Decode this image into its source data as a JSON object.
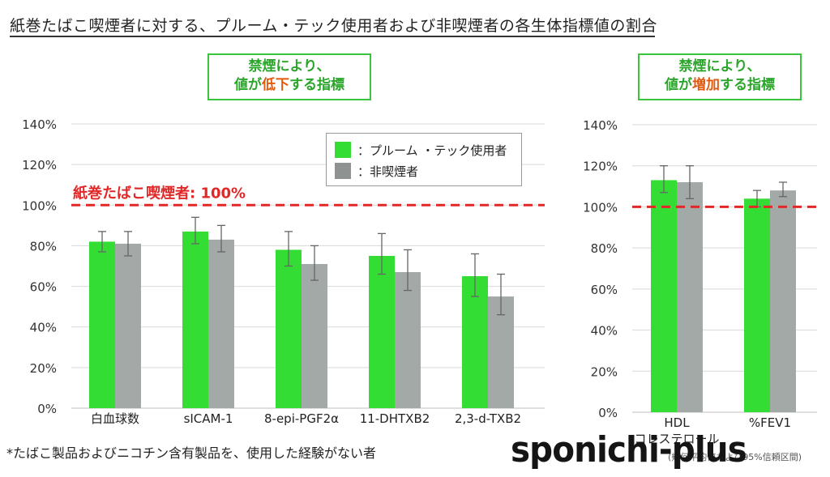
{
  "title": "紙巻たばこ喫煙者に対する、プルーム・テック使用者および非喫煙者の各生体指標値の割合",
  "tags": {
    "left": {
      "line1": "禁煙により、",
      "pre": "値が",
      "highlight": "低下",
      "post": "する指標"
    },
    "right": {
      "line1": "禁煙により、",
      "pre": "値が",
      "highlight": "増加",
      "post": "する指標"
    }
  },
  "legend": {
    "ploom": "：プルーム ・テック使用者",
    "nonsmoker": "：非喫煙者"
  },
  "reference_label": "紙巻たばこ喫煙者: 100%",
  "footnote": "*たばこ製品およびニコチン含有製品を、使用した経験がない者",
  "ci_note": "(幾何平均値および95%信頼区間)",
  "watermark": "sponichi-plus",
  "colors": {
    "ploom": "#33dd33",
    "nonsmoker": "#a3a9a6",
    "reference": "#e02828",
    "grid": "#d9d9d9",
    "tag_border": "#3cc43c",
    "highlight": "#e05a10"
  },
  "chart_data": [
    {
      "type": "bar",
      "panel": "left",
      "categories": [
        "白血球数",
        "sICAM-1",
        "8-epi-PGF2α",
        "11-DHTXB2",
        "2,3-d-TXB2"
      ],
      "series": [
        {
          "name": "プルーム ・テック使用者",
          "values": [
            82,
            87,
            78,
            75,
            65
          ],
          "ci_low": [
            77,
            81,
            70,
            66,
            55
          ],
          "ci_high": [
            87,
            94,
            87,
            86,
            76
          ]
        },
        {
          "name": "非喫煙者",
          "values": [
            81,
            83,
            71,
            67,
            55
          ],
          "ci_low": [
            75,
            77,
            63,
            58,
            46
          ],
          "ci_high": [
            87,
            90,
            80,
            78,
            66
          ]
        }
      ],
      "reference": 100,
      "ylim": [
        0,
        140
      ],
      "yticks": [
        "0%",
        "20%",
        "40%",
        "60%",
        "80%",
        "100%",
        "120%",
        "140%"
      ],
      "grid": true,
      "legend_position": "top-right"
    },
    {
      "type": "bar",
      "panel": "right",
      "categories": [
        "HDL コレステロール",
        "%FEV1"
      ],
      "series": [
        {
          "name": "プルーム ・テック使用者",
          "values": [
            113,
            104
          ],
          "ci_low": [
            107,
            100
          ],
          "ci_high": [
            120,
            108
          ]
        },
        {
          "name": "非喫煙者",
          "values": [
            112,
            108
          ],
          "ci_low": [
            104,
            105
          ],
          "ci_high": [
            120,
            112
          ]
        }
      ],
      "reference": 100,
      "ylim": [
        0,
        140
      ],
      "yticks": [
        "0%",
        "20%",
        "40%",
        "60%",
        "80%",
        "100%",
        "120%",
        "140%"
      ],
      "grid": true
    }
  ]
}
